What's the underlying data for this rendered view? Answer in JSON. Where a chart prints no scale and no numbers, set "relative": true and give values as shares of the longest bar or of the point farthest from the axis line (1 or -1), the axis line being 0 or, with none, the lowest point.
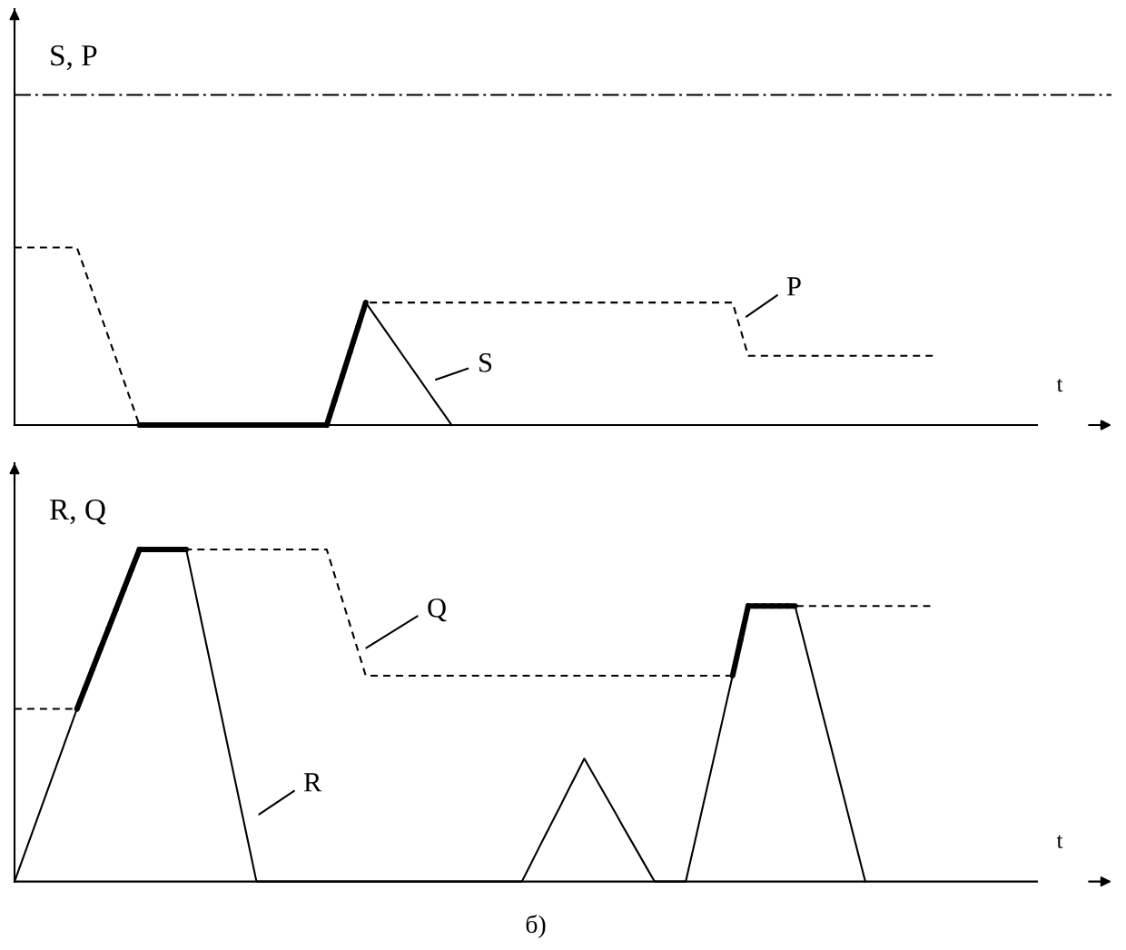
{
  "chart_data": [
    {
      "type": "line",
      "ylabel": "S, P",
      "xlabel": "t",
      "relative": true,
      "categories": [
        null,
        null,
        null,
        null,
        null,
        null,
        null,
        null,
        null,
        null,
        null,
        null,
        null,
        null,
        null,
        null,
        null,
        null,
        null,
        null,
        null,
        null,
        null,
        null,
        null,
        null,
        null,
        null,
        null,
        null,
        null,
        null,
        null,
        null,
        null,
        null,
        null,
        null,
        null,
        null,
        null,
        null,
        null,
        null,
        null,
        null,
        null,
        null,
        null,
        null,
        null,
        null,
        null,
        null,
        null,
        null,
        null,
        null,
        null,
        null,
        null,
        null,
        null,
        null,
        null,
        null,
        null,
        null,
        null,
        null,
        null,
        null,
        null,
        null,
        null,
        null,
        null,
        null,
        null,
        null,
        null,
        null,
        null,
        null,
        null,
        null,
        null,
        null,
        null,
        null,
        null,
        null,
        null,
        null,
        null,
        null,
        null,
        null,
        null,
        null,
        null,
        null,
        null,
        null,
        null,
        null,
        null,
        null,
        null,
        null,
        null,
        null,
        null,
        null,
        null,
        null,
        null,
        null,
        null,
        null,
        null,
        null,
        null,
        null,
        null,
        null,
        null,
        null,
        null,
        null,
        null,
        null
      ],
      "series": [
        {
          "name": "P",
          "color": "#000000",
          "line_style": "dashed",
          "values": [
            1,
            1,
            1,
            1,
            1,
            1,
            1,
            1,
            1,
            0.875,
            0.75,
            0.625,
            0.5,
            0.375,
            0.25,
            0.125,
            0,
            0,
            0,
            0,
            0,
            0,
            0,
            0,
            0,
            0,
            0,
            0,
            0,
            0,
            0,
            0,
            0,
            0,
            0,
            0,
            0,
            0,
            0,
            0,
            0,
            0.138,
            0.276,
            0.414,
            0.552,
            0.69,
            0.69,
            0.69,
            0.69,
            0.69,
            0.69,
            0.69,
            0.69,
            0.69,
            0.69,
            0.69,
            0.69,
            0.69,
            0.69,
            0.69,
            0.69,
            0.69,
            0.69,
            0.69,
            0.69,
            0.69,
            0.69,
            0.69,
            0.69,
            0.69,
            0.69,
            0.69,
            0.69,
            0.69,
            0.69,
            0.69,
            0.69,
            0.69,
            0.69,
            0.69,
            0.69,
            0.69,
            0.69,
            0.69,
            0.69,
            0.69,
            0.69,
            0.69,
            0.69,
            0.69,
            0.69,
            0.69,
            0.69,
            0.54,
            0.39,
            0.39,
            0.39,
            0.39,
            0.39,
            0.39,
            0.39,
            0.39,
            0.39,
            0.39,
            0.39,
            0.39,
            0.39,
            0.39,
            0.39,
            0.39,
            0.39,
            0.39,
            0.39,
            0.39,
            0.39,
            0.39,
            0.39,
            0.39,
            0.39,
            null,
            null,
            null,
            null,
            null,
            null,
            null,
            null,
            null,
            null,
            null,
            null,
            null
          ]
        },
        {
          "name": "S",
          "color": "#000000",
          "line_style": "solid",
          "values": [
            0,
            0,
            0,
            0,
            0,
            0,
            0,
            0,
            0,
            0,
            0,
            0,
            0,
            0,
            0,
            0,
            0,
            0,
            0,
            0,
            0,
            0,
            0,
            0,
            0,
            0,
            0,
            0,
            0,
            0,
            0,
            0,
            0,
            0,
            0,
            0,
            0,
            0,
            0,
            0,
            0,
            0.138,
            0.276,
            0.414,
            0.552,
            0.69,
            0.627,
            0.565,
            0.502,
            0.439,
            0.376,
            0.314,
            0.251,
            0.188,
            0.125,
            0.063,
            0,
            null,
            null,
            null,
            null,
            null,
            null,
            null,
            null,
            null,
            null,
            null,
            null,
            null,
            null,
            null,
            null,
            null,
            null,
            null,
            null,
            null,
            null,
            null,
            null,
            null,
            null,
            null,
            null,
            null,
            null,
            null,
            null,
            null,
            null,
            null,
            null,
            null,
            null,
            null,
            null,
            null,
            null,
            null,
            null,
            null,
            null,
            null,
            null,
            null,
            null,
            null,
            null,
            null,
            null,
            null,
            null,
            null,
            null,
            null,
            null,
            null,
            null,
            null,
            null,
            null,
            null,
            null,
            null,
            null,
            null,
            null,
            null,
            null,
            null,
            null
          ]
        }
      ],
      "ref_lines": [
        {
          "axis": "y",
          "value": 1.86,
          "color": "#000000",
          "line_style": "dashdot"
        }
      ]
    },
    {
      "type": "line",
      "ylabel": "R, Q",
      "xlabel": "t",
      "relative": true,
      "categories": [
        null,
        null,
        null,
        null,
        null,
        null,
        null,
        null,
        null,
        null,
        null,
        null,
        null,
        null,
        null,
        null,
        null,
        null,
        null,
        null,
        null,
        null,
        null,
        null,
        null,
        null,
        null,
        null,
        null,
        null,
        null,
        null,
        null,
        null,
        null,
        null,
        null,
        null,
        null,
        null,
        null,
        null,
        null,
        null,
        null,
        null,
        null,
        null,
        null,
        null,
        null,
        null,
        null,
        null,
        null,
        null,
        null,
        null,
        null,
        null,
        null,
        null,
        null,
        null,
        null,
        null,
        null,
        null,
        null,
        null,
        null,
        null,
        null,
        null,
        null,
        null,
        null,
        null,
        null,
        null,
        null,
        null,
        null,
        null,
        null,
        null,
        null,
        null,
        null,
        null,
        null,
        null,
        null,
        null,
        null,
        null,
        null,
        null,
        null,
        null,
        null,
        null,
        null,
        null,
        null,
        null,
        null,
        null,
        null,
        null,
        null,
        null,
        null,
        null,
        null,
        null,
        null,
        null,
        null,
        null,
        null,
        null,
        null,
        null,
        null,
        null,
        null,
        null,
        null,
        null,
        null,
        null
      ],
      "series": [
        {
          "name": "R",
          "color": "#000000",
          "line_style": "solid",
          "values": [
            0,
            0.065,
            0.13,
            0.195,
            0.26,
            0.325,
            0.39,
            0.455,
            0.52,
            0.58,
            0.64,
            0.7,
            0.76,
            0.82,
            0.88,
            0.94,
            1,
            1,
            1,
            1,
            1,
            1,
            1,
            0.889,
            0.778,
            0.667,
            0.556,
            0.444,
            0.333,
            0.222,
            0.111,
            0,
            0,
            0,
            0,
            0,
            0,
            0,
            0,
            0,
            0,
            0,
            0,
            0,
            0,
            0,
            0,
            0,
            0,
            0,
            0,
            0,
            0,
            0,
            0,
            0,
            0,
            0,
            0,
            0,
            0,
            0,
            0,
            0,
            0,
            0,
            0.046,
            0.093,
            0.139,
            0.185,
            0.231,
            0.278,
            0.324,
            0.37,
            0.329,
            0.288,
            0.247,
            0.206,
            0.164,
            0.123,
            0.082,
            0.041,
            0,
            0,
            0,
            0,
            0,
            0.103,
            0.207,
            0.31,
            0.413,
            0.517,
            0.62,
            0.725,
            0.83,
            0.83,
            0.83,
            0.83,
            0.83,
            0.83,
            0.83,
            0.738,
            0.646,
            0.553,
            0.461,
            0.369,
            0.277,
            0.184,
            0.092,
            0,
            null,
            null,
            null,
            null,
            null,
            null,
            null,
            null,
            null,
            null,
            null,
            null,
            null,
            null,
            null,
            null,
            null,
            null,
            null,
            null,
            null,
            null
          ]
        },
        {
          "name": "Q",
          "color": "#000000",
          "line_style": "dashed",
          "values": [
            0.52,
            0.52,
            0.52,
            0.52,
            0.52,
            0.52,
            0.52,
            0.52,
            0.52,
            0.58,
            0.64,
            0.7,
            0.76,
            0.82,
            0.88,
            0.94,
            1,
            1,
            1,
            1,
            1,
            1,
            1,
            1,
            1,
            1,
            1,
            1,
            1,
            1,
            1,
            1,
            1,
            1,
            1,
            1,
            1,
            1,
            1,
            1,
            1,
            0.924,
            0.848,
            0.772,
            0.696,
            0.62,
            0.62,
            0.62,
            0.62,
            0.62,
            0.62,
            0.62,
            0.62,
            0.62,
            0.62,
            0.62,
            0.62,
            0.62,
            0.62,
            0.62,
            0.62,
            0.62,
            0.62,
            0.62,
            0.62,
            0.62,
            0.62,
            0.62,
            0.62,
            0.62,
            0.62,
            0.62,
            0.62,
            0.62,
            0.62,
            0.62,
            0.62,
            0.62,
            0.62,
            0.62,
            0.62,
            0.62,
            0.62,
            0.62,
            0.62,
            0.62,
            0.62,
            0.62,
            0.62,
            0.62,
            0.62,
            0.62,
            0.62,
            0.725,
            0.83,
            0.83,
            0.83,
            0.83,
            0.83,
            0.83,
            0.83,
            0.83,
            0.83,
            0.83,
            0.83,
            0.83,
            0.83,
            0.83,
            0.83,
            0.83,
            0.83,
            0.83,
            0.83,
            0.83,
            0.83,
            0.83,
            0.83,
            0.83,
            0.83,
            null,
            null,
            null,
            null,
            null,
            null,
            null,
            null,
            null,
            null,
            null,
            null,
            null
          ]
        }
      ],
      "annotations": [
        "б)"
      ]
    }
  ]
}
